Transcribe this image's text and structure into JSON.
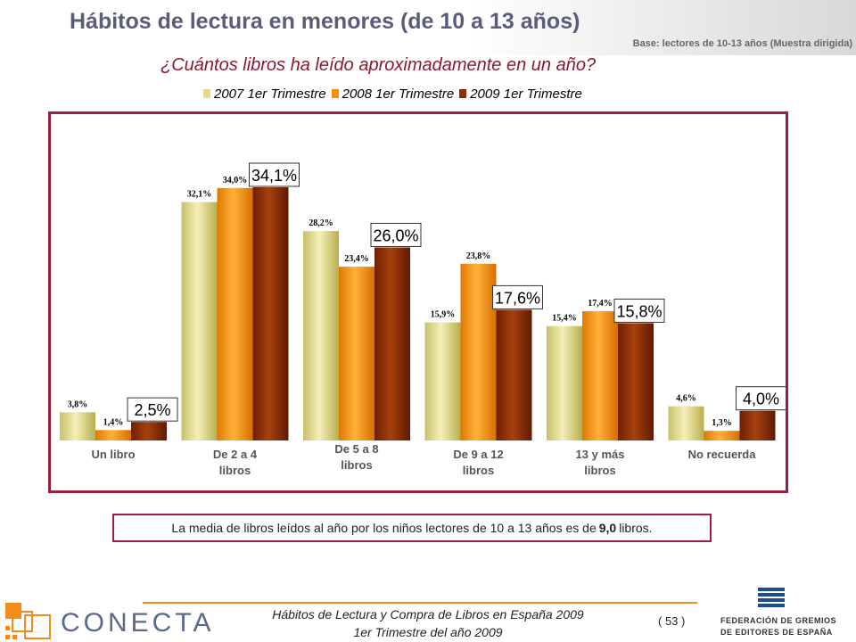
{
  "header": {
    "title": "Hábitos de lectura en menores (de 10 a 13 años)",
    "base": "Base: lectores de 10-13 años (Muestra dirigida)",
    "question": "¿Cuántos libros ha leído aproximadamente en un año?"
  },
  "colors": {
    "series_2007": "#e2dc8a",
    "series_2008": "#f39200",
    "series_2009": "#8b2c07",
    "frame": "#9a2040"
  },
  "chart_data": {
    "type": "bar",
    "categories": [
      "Un libro",
      "De 2 a 4 libros",
      "De 5 a 8 libros",
      "De 9 a 12 libros",
      "13 y más libros",
      "No recuerda"
    ],
    "series": [
      {
        "name": "2007 1er Trimestre",
        "values": [
          3.8,
          32.1,
          28.2,
          15.9,
          15.4,
          4.6
        ],
        "labels": [
          "3,8%",
          "32,1%",
          "28,2%",
          "15,9%",
          "15,4%",
          "4,6%"
        ]
      },
      {
        "name": "2008 1er Trimestre",
        "values": [
          1.4,
          34.0,
          23.4,
          23.8,
          17.4,
          1.3
        ],
        "labels": [
          "1,4%",
          "34,0%",
          "23,4%",
          "23,8%",
          "17,4%",
          "1,3%"
        ]
      },
      {
        "name": "2009 1er Trimestre",
        "values": [
          2.5,
          34.1,
          26.0,
          17.6,
          15.8,
          4.0
        ],
        "labels": [
          "2,5%",
          "34,1%",
          "26,0%",
          "17,6%",
          "15,8%",
          "4,0%"
        ]
      }
    ],
    "ylim": [
      0,
      36
    ],
    "legend_position": "top",
    "grid": false
  },
  "note": {
    "prefix": "La media de libros leídos al año por los niños lectores de 10 a 13 años es de",
    "value": "9,0",
    "suffix": "libros."
  },
  "footer": {
    "line1": "Hábitos de Lectura y Compra de Libros en España 2009",
    "line2": "1er Trimestre del año 2009",
    "page": "( 53 )",
    "logo_left": "CONECTA",
    "logo_right_line1": "FEDERACIÓN DE GREMIOS",
    "logo_right_line2": "DE EDITORES DE ESPAÑA"
  }
}
